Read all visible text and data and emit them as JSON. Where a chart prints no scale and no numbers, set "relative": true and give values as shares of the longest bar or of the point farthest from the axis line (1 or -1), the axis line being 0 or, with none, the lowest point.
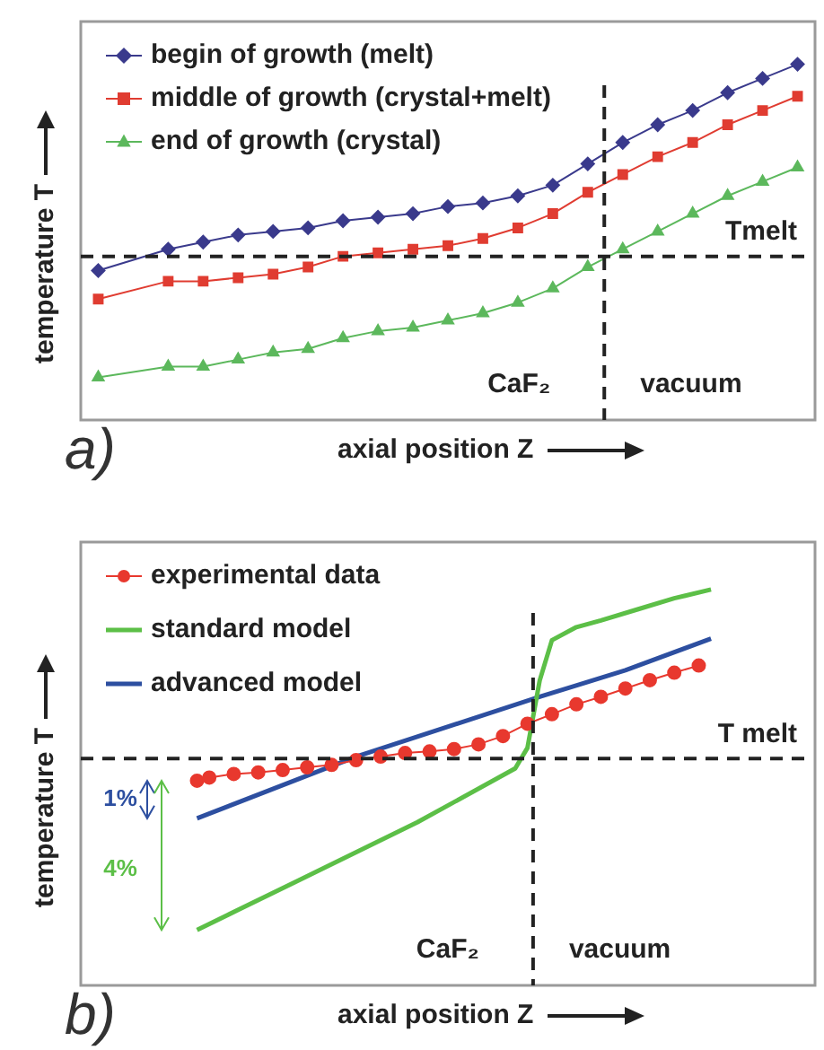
{
  "chart_data": [
    {
      "type": "line",
      "xlabel": "axial position Z",
      "ylabel": "temperature T",
      "relative": true,
      "legend": "top left",
      "categories": [
        null,
        null,
        null,
        null,
        null,
        null,
        null,
        null,
        null,
        null,
        null,
        null,
        null,
        null,
        null,
        null,
        null,
        null,
        null,
        null,
        null
      ],
      "series": [
        {
          "name": "begin of growth (melt)",
          "color": "#3a3a8c",
          "marker": "diamond",
          "values": [
            0.42,
            null,
            0.48,
            0.5,
            0.52,
            0.53,
            0.54,
            0.56,
            0.57,
            0.58,
            0.6,
            0.61,
            0.63,
            0.66,
            0.72,
            0.78,
            0.83,
            0.87,
            0.92,
            0.96,
            1
          ]
        },
        {
          "name": "middle of growth (crystal+melt)",
          "color": "#e03c31",
          "marker": "square",
          "values": [
            0.34,
            null,
            0.39,
            0.39,
            0.4,
            0.41,
            0.43,
            0.46,
            0.47,
            0.48,
            0.49,
            0.51,
            0.54,
            0.58,
            0.64,
            0.69,
            0.74,
            0.78,
            0.83,
            0.87,
            0.91
          ]
        },
        {
          "name": "end of growth (crystal)",
          "color": "#5cb85c",
          "marker": "triangle",
          "values": [
            0.12,
            null,
            0.15,
            0.15,
            0.17,
            0.19,
            0.2,
            0.23,
            0.25,
            0.26,
            0.28,
            0.3,
            0.33,
            0.37,
            0.43,
            0.48,
            0.53,
            0.58,
            0.63,
            0.67,
            0.71
          ]
        }
      ],
      "ref_lines": [
        {
          "axis": "y",
          "value": 0.46,
          "label": "Tmelt",
          "line_style": "dashed"
        }
      ],
      "annotations": [
        "CaF₂",
        "vacuum",
        "a)"
      ]
    },
    {
      "type": "line",
      "xlabel": "axial position Z",
      "ylabel": "temperature T",
      "relative": true,
      "legend": "top left",
      "categories": [
        null,
        null,
        null,
        null,
        null,
        null,
        null,
        null,
        null,
        null,
        null,
        null,
        null,
        null,
        null,
        null,
        null,
        null,
        null,
        null,
        null,
        null,
        null,
        null,
        null,
        null,
        null,
        null,
        null,
        null,
        null,
        null,
        null,
        null,
        null,
        null,
        null,
        null,
        null,
        null,
        null,
        null,
        null,
        null,
        null,
        null,
        null,
        null,
        null,
        null,
        null,
        null,
        null,
        null,
        null,
        null,
        null,
        null,
        null,
        null
      ],
      "series": [
        {
          "name": "experimental data",
          "color": "#e8382e",
          "marker": "circle",
          "values": [
            null,
            null,
            null,
            null,
            null,
            null,
            null,
            null,
            null,
            0.517,
            0.525,
            null,
            0.534,
            null,
            0.538,
            null,
            0.544,
            null,
            0.551,
            null,
            0.557,
            null,
            0.569,
            null,
            0.578,
            null,
            0.587,
            null,
            0.591,
            null,
            0.597,
            null,
            0.609,
            null,
            0.63,
            null,
            0.661,
            null,
            0.685,
            null,
            0.71,
            null,
            0.729,
            null,
            0.75,
            null,
            0.771,
            null,
            0.79,
            null,
            0.808,
            null,
            null,
            null,
            null,
            null,
            null,
            null,
            null,
            null
          ]
        },
        {
          "name": "standard model",
          "color": "#5cbf47",
          "marker": "none",
          "values": [
            null,
            null,
            null,
            null,
            null,
            null,
            null,
            null,
            null,
            0.14,
            null,
            null,
            null,
            null,
            null,
            null,
            null,
            0.261,
            null,
            null,
            null,
            null,
            null,
            null,
            null,
            null,
            null,
            0.412,
            null,
            null,
            null,
            null,
            null,
            null,
            null,
            0.548,
            0.6,
            0.77,
            0.872,
            null,
            0.905,
            null,
            0.922,
            null,
            null,
            0.95,
            null,
            null,
            0.978,
            null,
            null,
            1,
            null,
            null,
            null,
            null,
            null,
            null,
            null,
            null
          ]
        },
        {
          "name": "advanced model",
          "color": "#2d4fa0",
          "marker": "none",
          "values": [
            null,
            null,
            null,
            null,
            null,
            null,
            null,
            null,
            null,
            0.422,
            null,
            null,
            null,
            null,
            null,
            null,
            null,
            null,
            null,
            null,
            null,
            null,
            0.578,
            null,
            null,
            null,
            null,
            null,
            null,
            null,
            null,
            null,
            null,
            null,
            null,
            null,
            null,
            0.729,
            null,
            null,
            null,
            null,
            null,
            null,
            0.796,
            null,
            null,
            null,
            null,
            null,
            null,
            0.876,
            null,
            null,
            null,
            null,
            null,
            null,
            null,
            null
          ]
        }
      ],
      "ref_lines": [
        {
          "axis": "y",
          "value": 0.573,
          "label": "T melt",
          "line_style": "dashed"
        }
      ],
      "annotations": [
        "1%",
        "4%",
        "CaF₂",
        "vacuum",
        "b)"
      ]
    }
  ]
}
